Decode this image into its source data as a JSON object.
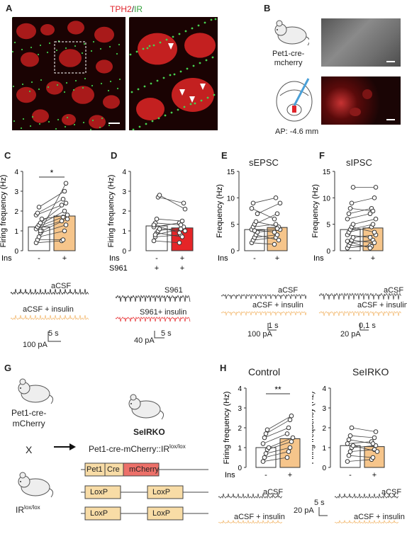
{
  "panelA": {
    "label": "A",
    "title_tph2": "TPH2",
    "title_sep": "/",
    "title_ir": "IR",
    "colors": {
      "tph2": "#e0242b",
      "ir": "#36a340"
    }
  },
  "panelB": {
    "label": "B",
    "mouse_line": "Pet1-cre-\nmcherry",
    "ap_label": "AP: -4.6 mm"
  },
  "panelC": {
    "label": "C",
    "chart_data": {
      "type": "bar",
      "ylabel": "Firing frequency (Hz)",
      "ylim": [
        0,
        4
      ],
      "yticks": [
        "0",
        "1",
        "2",
        "3",
        "4"
      ],
      "categories": [
        "-",
        "+"
      ],
      "row_label": "Ins",
      "bar_values": [
        1.2,
        1.75
      ],
      "bar_colors": [
        "#ffffff",
        "#f6c58b"
      ],
      "pairs": [
        [
          0.4,
          0.5
        ],
        [
          0.55,
          0.55
        ],
        [
          0.7,
          1.0
        ],
        [
          0.9,
          1.3
        ],
        [
          1.0,
          1.6
        ],
        [
          1.1,
          1.5
        ],
        [
          1.2,
          1.7
        ],
        [
          1.3,
          2.0
        ],
        [
          1.4,
          2.4
        ],
        [
          1.6,
          1.8
        ],
        [
          1.8,
          2.3
        ],
        [
          1.9,
          2.6
        ],
        [
          2.2,
          3.0
        ],
        [
          1.0,
          3.4
        ]
      ],
      "significance": "*"
    },
    "trace_label_1": "aCSF",
    "trace_label_2": "aCSF + insulin",
    "scale_time": "5 s",
    "scale_amp": "100 pA"
  },
  "panelD": {
    "label": "D",
    "chart_data": {
      "type": "bar",
      "ylabel": "Firing frequency (Hz)",
      "ylim": [
        0,
        4
      ],
      "yticks": [
        "0",
        "1",
        "2",
        "3",
        "4"
      ],
      "categories": [
        "-",
        "+"
      ],
      "row_label": "Ins",
      "row_label_2": "S961",
      "row2_values": [
        "+",
        "+"
      ],
      "bar_values": [
        1.25,
        1.15
      ],
      "bar_colors": [
        "#ffffff",
        "#e52528"
      ],
      "pairs": [
        [
          0.5,
          0.4
        ],
        [
          0.7,
          0.8
        ],
        [
          0.9,
          0.7
        ],
        [
          1.0,
          1.2
        ],
        [
          1.1,
          1.0
        ],
        [
          1.2,
          1.4
        ],
        [
          1.4,
          1.3
        ],
        [
          1.6,
          1.5
        ],
        [
          2.7,
          2.4
        ],
        [
          2.8,
          2.1
        ],
        [
          1.3,
          0.9
        ],
        [
          0.8,
          1.1
        ]
      ]
    },
    "trace_label_1": "S961",
    "trace_label_2": "S961+ insulin",
    "scale_time": "5 s",
    "scale_amp": "40 pA"
  },
  "panelE": {
    "label": "E",
    "title": "sEPSC",
    "chart_data": {
      "type": "bar",
      "ylabel": "Frequency (Hz)",
      "ylim": [
        0,
        15
      ],
      "yticks": [
        "0",
        "5",
        "10",
        "15"
      ],
      "categories": [
        "-",
        "+"
      ],
      "row_label": "Ins",
      "bar_values": [
        4.0,
        4.4
      ],
      "bar_colors": [
        "#ffffff",
        "#f6c58b"
      ],
      "pairs": [
        [
          1.5,
          1.2
        ],
        [
          2.0,
          2.5
        ],
        [
          2.5,
          3.0
        ],
        [
          3.0,
          2.0
        ],
        [
          3.5,
          4.0
        ],
        [
          4.0,
          3.5
        ],
        [
          4.5,
          5.0
        ],
        [
          5.0,
          7.0
        ],
        [
          5.5,
          4.5
        ],
        [
          7.0,
          9.0
        ],
        [
          8.0,
          6.0
        ],
        [
          9.0,
          10.0
        ],
        [
          3.8,
          4.2
        ]
      ]
    },
    "trace_label_1": "aCSF",
    "trace_label_2": "aCSF + insulin",
    "scale_time": "1 s",
    "scale_amp": "100 pA"
  },
  "panelF": {
    "label": "F",
    "title": "sIPSC",
    "chart_data": {
      "type": "bar",
      "ylabel": "Frequency (Hz)",
      "ylim": [
        0,
        15
      ],
      "yticks": [
        "0",
        "5",
        "10",
        "15"
      ],
      "categories": [
        "-",
        "+"
      ],
      "row_label": "Ins",
      "bar_values": [
        4.0,
        4.3
      ],
      "bar_colors": [
        "#ffffff",
        "#f6c58b"
      ],
      "pairs": [
        [
          0.5,
          1.0
        ],
        [
          1.0,
          0.8
        ],
        [
          1.5,
          2.0
        ],
        [
          2.0,
          1.5
        ],
        [
          2.5,
          3.0
        ],
        [
          3.0,
          2.5
        ],
        [
          3.5,
          4.5
        ],
        [
          4.0,
          5.0
        ],
        [
          4.5,
          3.5
        ],
        [
          5.0,
          6.0
        ],
        [
          6.0,
          7.0
        ],
        [
          7.0,
          8.0
        ],
        [
          8.0,
          7.5
        ],
        [
          9.0,
          10.0
        ],
        [
          12.0,
          12.0
        ],
        [
          1.8,
          0.5
        ]
      ]
    },
    "trace_label_1": "aCSF",
    "trace_label_2": "aCSF + insulin",
    "scale_time": "0,1 s",
    "scale_amp": "20 pA"
  },
  "panelG": {
    "label": "G",
    "mouse1": "Pet1-cre-\nmCherry",
    "cross": "X",
    "mouse2_base": "IR",
    "mouse2_sup": "lox/lox",
    "result_name": "SeIRKO",
    "result_genotype_base": "Pet1-cre-mCherry::IR",
    "result_genotype_sup": "lox/lox",
    "construct": [
      "Pet1",
      "Cre",
      "mCherry"
    ],
    "construct_colors": [
      "#f8dca6",
      "#f8dca6",
      "#ec7069"
    ],
    "loxp": "LoxP"
  },
  "panelH": {
    "label": "H",
    "control": {
      "title": "Control",
      "chart_data": {
        "type": "bar",
        "ylabel": "Firing frequency (Hz)",
        "ylim": [
          0,
          4
        ],
        "yticks": [
          "0",
          "1",
          "2",
          "3",
          "4"
        ],
        "categories": [
          "-",
          "+"
        ],
        "row_label": "Ins",
        "bar_values": [
          1.0,
          1.45
        ],
        "bar_colors": [
          "#ffffff",
          "#f6c58b"
        ],
        "pairs": [
          [
            0.3,
            0.5
          ],
          [
            0.5,
            0.8
          ],
          [
            0.7,
            1.0
          ],
          [
            0.9,
            1.3
          ],
          [
            1.0,
            1.5
          ],
          [
            1.2,
            1.7
          ],
          [
            1.5,
            2.0
          ],
          [
            1.7,
            2.4
          ],
          [
            1.9,
            2.6
          ]
        ],
        "significance": "**"
      },
      "trace_label_1": "aCSF",
      "trace_label_2": "aCSF + insulin"
    },
    "seirko": {
      "title": "SeIRKO",
      "chart_data": {
        "type": "bar",
        "ylabel": "Firing frequency (Hz)",
        "ylim": [
          0,
          4
        ],
        "yticks": [
          "0",
          "1",
          "2",
          "3",
          "4"
        ],
        "categories": [
          "-",
          "+"
        ],
        "bar_values": [
          1.1,
          1.05
        ],
        "bar_colors": [
          "#ffffff",
          "#f6c58b"
        ],
        "pairs": [
          [
            0.3,
            0.4
          ],
          [
            0.6,
            0.5
          ],
          [
            0.8,
            0.9
          ],
          [
            1.0,
            1.1
          ],
          [
            1.1,
            0.8
          ],
          [
            1.2,
            1.3
          ],
          [
            1.4,
            1.2
          ],
          [
            1.6,
            1.5
          ],
          [
            2.0,
            1.8
          ]
        ]
      },
      "trace_label_1": "aCSF",
      "trace_label_2": "aCSF + insulin"
    },
    "scale_time": "5 s",
    "scale_amp": "20 pA"
  }
}
